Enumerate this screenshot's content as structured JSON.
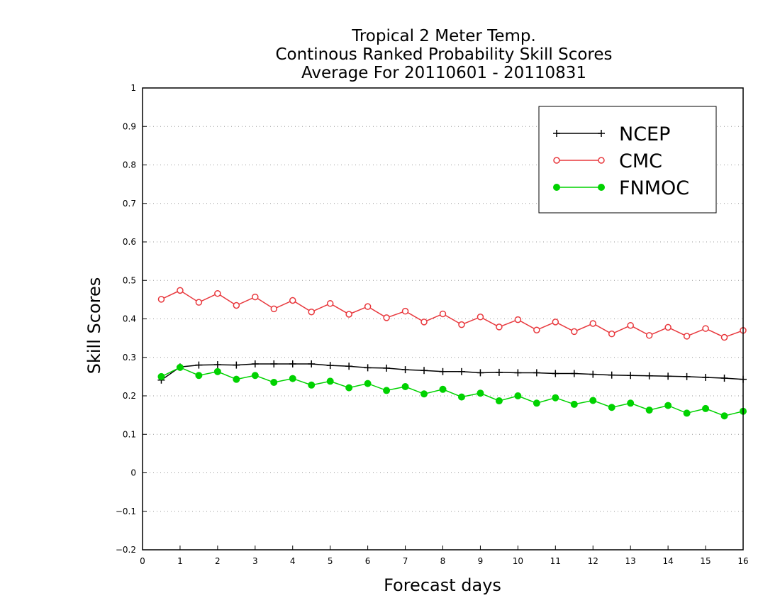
{
  "chart_data": {
    "type": "line",
    "title": [
      "Tropical 2 Meter Temp.",
      "Continous Ranked Probability Skill Scores",
      "Average For 20110601 - 20110831"
    ],
    "xlabel": "Forecast days",
    "ylabel": "Skill Scores",
    "xlim": [
      0,
      16
    ],
    "ylim": [
      -0.2,
      1
    ],
    "xticks": [
      "0",
      "1",
      "2",
      "3",
      "4",
      "5",
      "6",
      "7",
      "8",
      "9",
      "10",
      "11",
      "12",
      "13",
      "14",
      "15",
      "16"
    ],
    "yticks": [
      "-0.2",
      "-0.1",
      "0",
      "0.1",
      "0.2",
      "0.3",
      "0.4",
      "0.5",
      "0.6",
      "0.7",
      "0.8",
      "0.9",
      "1"
    ],
    "grid": "horizontal dotted",
    "legend_position": "top-right",
    "x": [
      0.5,
      1,
      1.5,
      2,
      2.5,
      3,
      3.5,
      4,
      4.5,
      5,
      5.5,
      6,
      6.5,
      7,
      7.5,
      8,
      8.5,
      9,
      9.5,
      10,
      10.5,
      11,
      11.5,
      12,
      12.5,
      13,
      13.5,
      14,
      14.5,
      15,
      15.5,
      16
    ],
    "series": [
      {
        "name": "NCEP",
        "color": "#000000",
        "marker": "plus",
        "values": [
          0.241,
          0.275,
          0.28,
          0.281,
          0.28,
          0.283,
          0.283,
          0.283,
          0.283,
          0.279,
          0.277,
          0.273,
          0.272,
          0.268,
          0.266,
          0.263,
          0.263,
          0.26,
          0.261,
          0.26,
          0.26,
          0.258,
          0.258,
          0.256,
          0.254,
          0.253,
          0.252,
          0.251,
          0.25,
          0.248,
          0.246,
          0.243
        ]
      },
      {
        "name": "CMC",
        "color": "#e8383d",
        "marker": "open-circle",
        "values": [
          0.451,
          0.474,
          0.443,
          0.466,
          0.435,
          0.457,
          0.426,
          0.448,
          0.418,
          0.44,
          0.412,
          0.432,
          0.403,
          0.42,
          0.392,
          0.413,
          0.385,
          0.405,
          0.379,
          0.398,
          0.371,
          0.392,
          0.367,
          0.388,
          0.361,
          0.383,
          0.357,
          0.378,
          0.355,
          0.375,
          0.352,
          0.37
        ]
      },
      {
        "name": "FNMOC",
        "color": "#00d200",
        "marker": "filled-circle",
        "values": [
          0.25,
          0.274,
          0.253,
          0.263,
          0.243,
          0.253,
          0.235,
          0.245,
          0.228,
          0.238,
          0.221,
          0.232,
          0.214,
          0.224,
          0.205,
          0.217,
          0.197,
          0.207,
          0.187,
          0.2,
          0.181,
          0.195,
          0.178,
          0.188,
          0.17,
          0.181,
          0.163,
          0.175,
          0.155,
          0.167,
          0.148,
          0.16
        ]
      }
    ]
  }
}
